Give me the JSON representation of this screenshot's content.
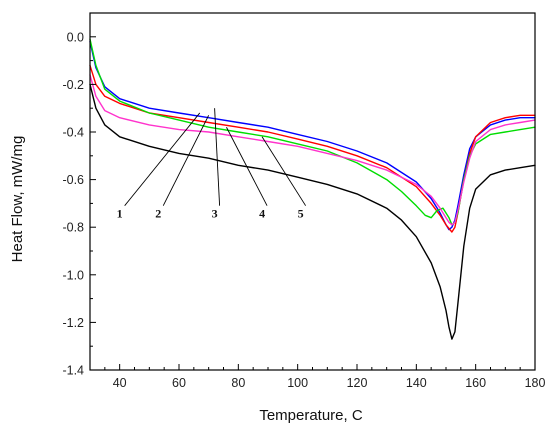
{
  "chart_data": {
    "type": "line",
    "title": "",
    "xlabel": "Temperature, C",
    "ylabel": "Heat Flow, mW/mg",
    "xlim": [
      30,
      180
    ],
    "ylim": [
      -1.4,
      0.1
    ],
    "xticks": [
      40,
      60,
      80,
      100,
      120,
      140,
      160,
      180
    ],
    "xtick_labels": [
      "40",
      "60",
      "80",
      "100",
      "120",
      "140",
      "160",
      "180"
    ],
    "yticks": [
      0.0,
      -0.2,
      -0.4,
      -0.6,
      -0.8,
      -1.0,
      -1.2,
      -1.4
    ],
    "ytick_labels": [
      "0.0",
      "-0.2",
      "-0.4",
      "-0.6",
      "-0.8",
      "-1.0",
      "-1.2",
      "-1.4"
    ],
    "grid": false,
    "legend": "none",
    "series": [
      {
        "color": "#000000",
        "x": [
          30,
          32,
          35,
          40,
          50,
          60,
          70,
          80,
          90,
          100,
          110,
          120,
          130,
          135,
          140,
          145,
          148,
          150,
          151,
          152,
          153,
          154,
          156,
          158,
          160,
          165,
          170,
          175,
          180
        ],
        "values": [
          -0.2,
          -0.3,
          -0.37,
          -0.42,
          -0.46,
          -0.49,
          -0.51,
          -0.54,
          -0.56,
          -0.59,
          -0.62,
          -0.66,
          -0.72,
          -0.77,
          -0.84,
          -0.95,
          -1.05,
          -1.15,
          -1.22,
          -1.27,
          -1.24,
          -1.12,
          -0.88,
          -0.72,
          -0.64,
          -0.58,
          -0.56,
          -0.55,
          -0.54
        ]
      },
      {
        "color": "#0000ff",
        "x": [
          30,
          32,
          35,
          40,
          50,
          60,
          70,
          80,
          90,
          100,
          110,
          120,
          130,
          140,
          145,
          148,
          150,
          151,
          152,
          153,
          154,
          156,
          158,
          160,
          165,
          170,
          175,
          180
        ],
        "values": [
          -0.02,
          -0.13,
          -0.21,
          -0.26,
          -0.3,
          -0.32,
          -0.34,
          -0.36,
          -0.38,
          -0.41,
          -0.44,
          -0.48,
          -0.53,
          -0.61,
          -0.68,
          -0.74,
          -0.79,
          -0.81,
          -0.8,
          -0.77,
          -0.71,
          -0.58,
          -0.47,
          -0.42,
          -0.37,
          -0.35,
          -0.34,
          -0.34
        ]
      },
      {
        "color": "#ff0000",
        "x": [
          30,
          32,
          35,
          40,
          50,
          60,
          70,
          80,
          90,
          100,
          110,
          120,
          130,
          140,
          145,
          148,
          150,
          152,
          153,
          154,
          156,
          158,
          160,
          165,
          170,
          175,
          180
        ],
        "values": [
          -0.12,
          -0.2,
          -0.25,
          -0.28,
          -0.32,
          -0.34,
          -0.36,
          -0.38,
          -0.4,
          -0.43,
          -0.46,
          -0.5,
          -0.55,
          -0.63,
          -0.7,
          -0.75,
          -0.79,
          -0.82,
          -0.8,
          -0.74,
          -0.6,
          -0.49,
          -0.42,
          -0.36,
          -0.34,
          -0.33,
          -0.33
        ]
      },
      {
        "color": "#00dd00",
        "x": [
          30,
          32,
          35,
          40,
          50,
          60,
          70,
          80,
          90,
          100,
          110,
          120,
          130,
          135,
          140,
          143,
          145,
          147,
          149,
          151,
          152,
          153,
          154,
          156,
          158,
          160,
          165,
          170,
          175,
          180
        ],
        "values": [
          -0.01,
          -0.12,
          -0.22,
          -0.27,
          -0.32,
          -0.35,
          -0.38,
          -0.4,
          -0.42,
          -0.45,
          -0.48,
          -0.53,
          -0.6,
          -0.65,
          -0.71,
          -0.75,
          -0.76,
          -0.73,
          -0.72,
          -0.76,
          -0.79,
          -0.78,
          -0.74,
          -0.6,
          -0.5,
          -0.45,
          -0.41,
          -0.4,
          -0.39,
          -0.38
        ]
      },
      {
        "color": "#ff33cc",
        "x": [
          30,
          32,
          35,
          40,
          50,
          60,
          70,
          80,
          90,
          100,
          110,
          120,
          130,
          140,
          145,
          148,
          150,
          151,
          152,
          153,
          154,
          156,
          158,
          160,
          165,
          170,
          175,
          180
        ],
        "values": [
          -0.16,
          -0.25,
          -0.31,
          -0.34,
          -0.37,
          -0.39,
          -0.4,
          -0.42,
          -0.44,
          -0.46,
          -0.49,
          -0.52,
          -0.56,
          -0.62,
          -0.67,
          -0.72,
          -0.76,
          -0.78,
          -0.79,
          -0.78,
          -0.73,
          -0.61,
          -0.51,
          -0.44,
          -0.39,
          -0.37,
          -0.36,
          -0.35
        ]
      }
    ],
    "annotations": [
      {
        "text": "1",
        "label_at": [
          40,
          -0.76
        ],
        "points_to": [
          67,
          -0.32
        ]
      },
      {
        "text": "2",
        "label_at": [
          53,
          -0.76
        ],
        "points_to": [
          70,
          -0.33
        ]
      },
      {
        "text": "3",
        "label_at": [
          72,
          -0.76
        ],
        "points_to": [
          72,
          -0.3
        ]
      },
      {
        "text": "4",
        "label_at": [
          88,
          -0.76
        ],
        "points_to": [
          76,
          -0.38
        ]
      },
      {
        "text": "5",
        "label_at": [
          101,
          -0.76
        ],
        "points_to": [
          88,
          -0.42
        ]
      }
    ]
  }
}
